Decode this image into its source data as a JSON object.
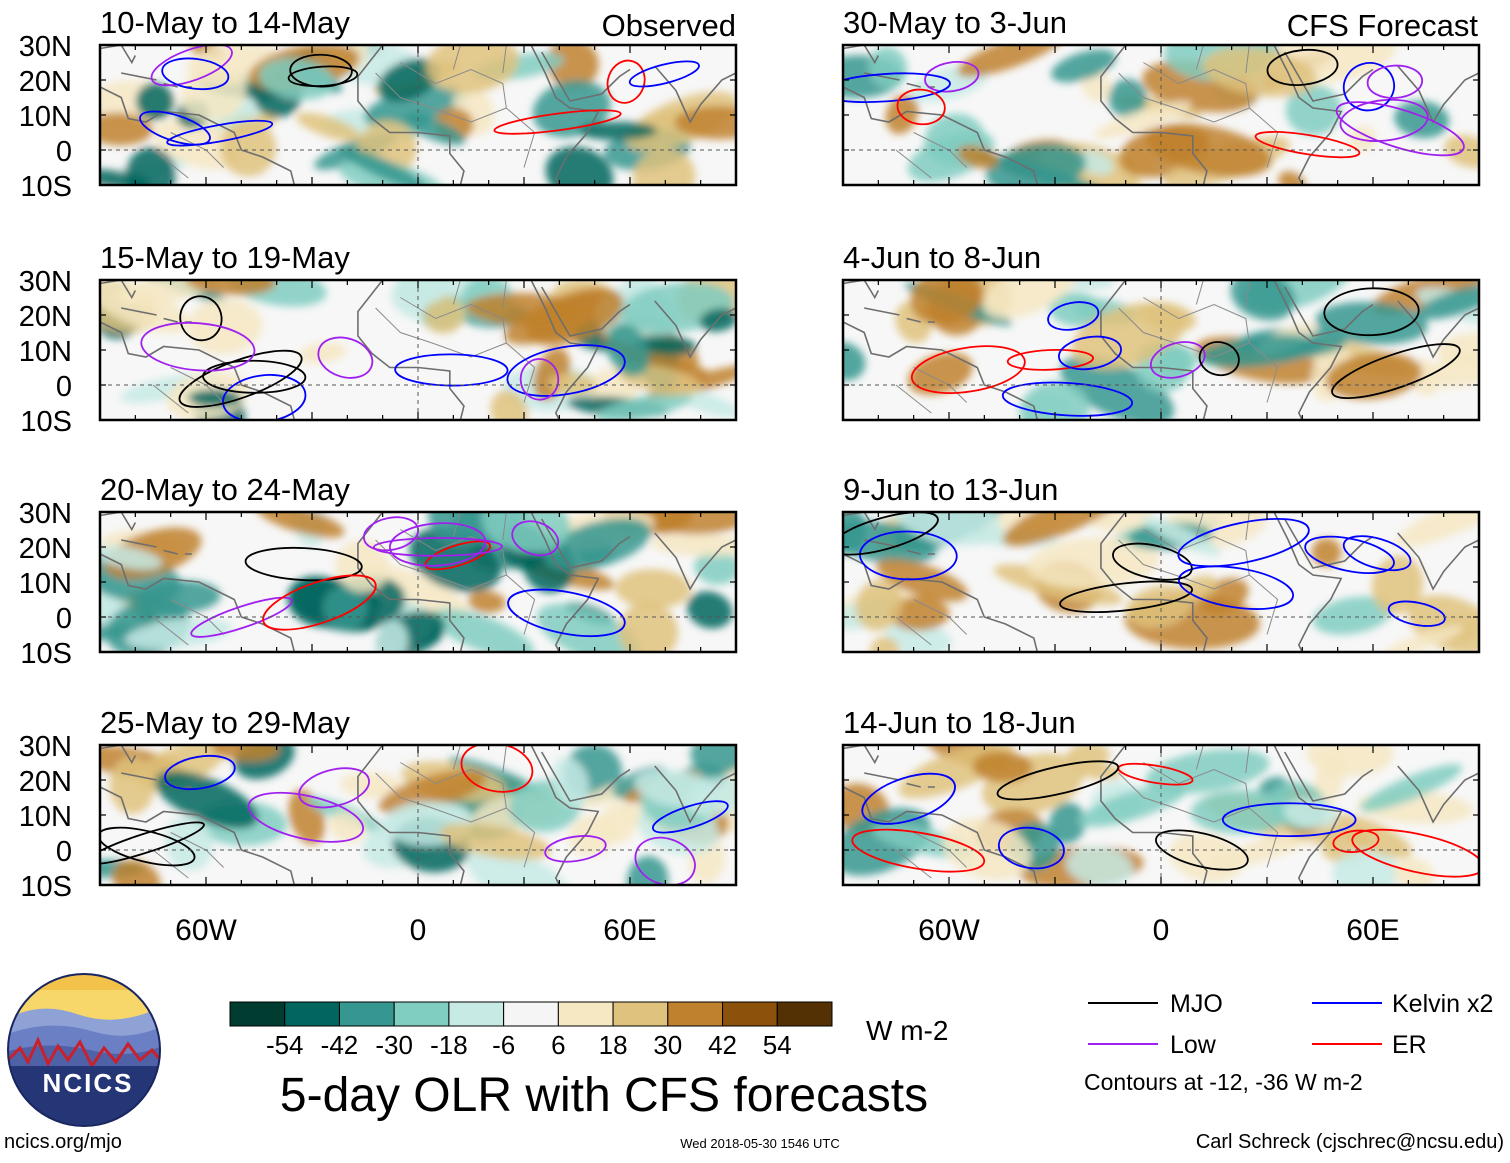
{
  "colors": {
    "mjo": "#000000",
    "low": "#a020f0",
    "kelvin": "#0000ff",
    "er": "#ff0000",
    "scale": [
      "#003c30",
      "#01665e",
      "#35978f",
      "#80cdc1",
      "#c7eae5",
      "#f5f5f5",
      "#f6e8c3",
      "#dfc27d",
      "#bf812d",
      "#8c510a",
      "#543005"
    ]
  },
  "column_labels": {
    "left": "Observed",
    "right": "CFS Forecast"
  },
  "lat_ticks": [
    "30N",
    "20N",
    "10N",
    "0",
    "10S"
  ],
  "lon_ticks": [
    "60W",
    "0",
    "60E"
  ],
  "panels": {
    "left": [
      {
        "period": "10-May to 14-May"
      },
      {
        "period": "15-May to 19-May"
      },
      {
        "period": "20-May to 24-May"
      },
      {
        "period": "25-May to 29-May"
      }
    ],
    "right": [
      {
        "period": "30-May to 3-Jun"
      },
      {
        "period": "4-Jun to 8-Jun"
      },
      {
        "period": "9-Jun to 13-Jun"
      },
      {
        "period": "14-Jun to 18-Jun"
      }
    ]
  },
  "colorbar": {
    "ticks": [
      "-54",
      "-42",
      "-30",
      "-18",
      "-6",
      "6",
      "18",
      "30",
      "42",
      "54"
    ],
    "units": "W m-2"
  },
  "title": "5-day OLR with CFS forecasts",
  "legend": {
    "mjo": "MJO",
    "kelvin": "Kelvin x2",
    "low": "Low",
    "er": "ER",
    "note": "Contours at -12, -36 W m-2"
  },
  "logo": "NCICS",
  "footer": {
    "url": "ncics.org/mjo",
    "timestamp": "Wed 2018-05-30 1546 UTC",
    "author": "Carl Schreck (cjschrec@ncsu.edu)"
  },
  "chart_data": {
    "type": "heatmap",
    "variable": "5-day OLR anomaly with CFS forecast",
    "units": "W m-2",
    "x_range": [
      -90,
      90
    ],
    "y_range": [
      -10,
      30
    ],
    "color_levels": [
      -54,
      -42,
      -30,
      -18,
      -6,
      6,
      18,
      30,
      42,
      54
    ],
    "contour_levels": [
      -12,
      -36
    ],
    "series": [
      {
        "name": "MJO"
      },
      {
        "name": "Low"
      },
      {
        "name": "Kelvin x2"
      },
      {
        "name": "ER"
      }
    ]
  }
}
